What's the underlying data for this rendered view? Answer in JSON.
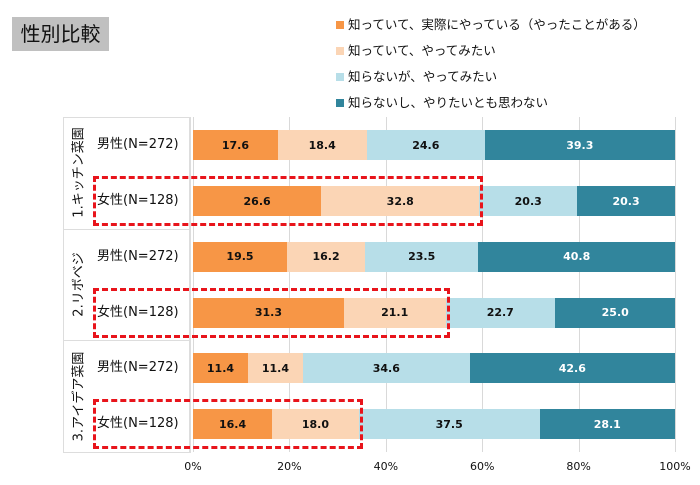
{
  "title": "性別比較",
  "chart_data": {
    "type": "bar",
    "orientation": "horizontal-stacked-100",
    "legend_position": "top-right",
    "series": [
      {
        "name": "知っていて、実際にやっている（やったことがある）",
        "color": "#F79646"
      },
      {
        "name": "知っていて、やってみたい",
        "color": "#FBD5B5"
      },
      {
        "name": "知らないが、やってみたい",
        "color": "#B7DEE8"
      },
      {
        "name": "知らないし、やりたいとも思わない",
        "color": "#31859C"
      }
    ],
    "groups": [
      {
        "name": "1.キッチン菜園",
        "rows": [
          {
            "label": "男性(N=272)",
            "values": [
              17.6,
              18.4,
              24.6,
              39.3
            ],
            "highlight": false
          },
          {
            "label": "女性(N=128)",
            "values": [
              26.6,
              32.8,
              20.3,
              20.3
            ],
            "highlight": true,
            "highlight_segments": 2
          }
        ]
      },
      {
        "name": "2.リボベジ",
        "rows": [
          {
            "label": "男性(N=272)",
            "values": [
              19.5,
              16.2,
              23.5,
              40.8
            ],
            "highlight": false
          },
          {
            "label": "女性(N=128)",
            "values": [
              31.3,
              21.1,
              22.7,
              25.0
            ],
            "highlight": true,
            "highlight_segments": 2
          }
        ]
      },
      {
        "name": "3.アイデア菜園",
        "rows": [
          {
            "label": "男性(N=272)",
            "values": [
              11.4,
              11.4,
              34.6,
              42.6
            ],
            "highlight": false
          },
          {
            "label": "女性(N=128)",
            "values": [
              16.4,
              18.0,
              37.5,
              28.1
            ],
            "highlight": true,
            "highlight_segments": 2
          }
        ]
      }
    ],
    "xlim": [
      0,
      100
    ],
    "xticks": [
      "0%",
      "20%",
      "40%",
      "60%",
      "80%",
      "100%"
    ],
    "grid": true
  }
}
